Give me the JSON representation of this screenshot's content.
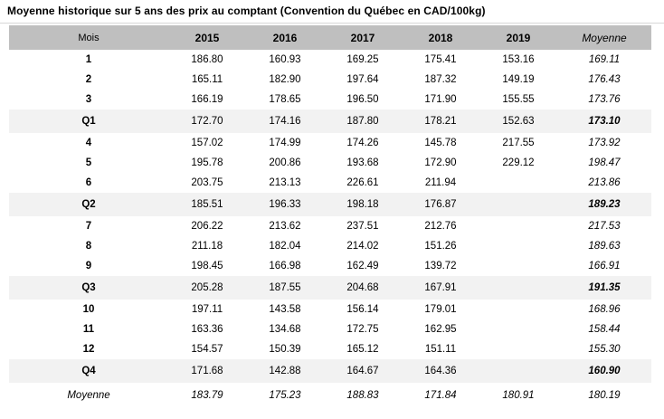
{
  "title": "Moyenne historique sur 5 ans des prix au comptant (Convention du Québec en CAD/100kg)",
  "colors": {
    "header_bg": "#bfbfbf",
    "quarter_row_bg": "#f2f2f2",
    "text": "#000000",
    "divider": "#d8d8d8"
  },
  "table": {
    "columns": [
      "Mois",
      "2015",
      "2016",
      "2017",
      "2018",
      "2019",
      "Moyenne"
    ],
    "rows": [
      {
        "label": "1",
        "type": "month",
        "values": [
          "186.80",
          "160.93",
          "169.25",
          "175.41",
          "153.16",
          "169.11"
        ]
      },
      {
        "label": "2",
        "type": "month",
        "values": [
          "165.11",
          "182.90",
          "197.64",
          "187.32",
          "149.19",
          "176.43"
        ]
      },
      {
        "label": "3",
        "type": "month",
        "values": [
          "166.19",
          "178.65",
          "196.50",
          "171.90",
          "155.55",
          "173.76"
        ]
      },
      {
        "label": "Q1",
        "type": "quarter",
        "values": [
          "172.70",
          "174.16",
          "187.80",
          "178.21",
          "152.63",
          "173.10"
        ]
      },
      {
        "label": "4",
        "type": "month",
        "values": [
          "157.02",
          "174.99",
          "174.26",
          "145.78",
          "217.55",
          "173.92"
        ]
      },
      {
        "label": "5",
        "type": "month",
        "values": [
          "195.78",
          "200.86",
          "193.68",
          "172.90",
          "229.12",
          "198.47"
        ]
      },
      {
        "label": "6",
        "type": "month",
        "values": [
          "203.75",
          "213.13",
          "226.61",
          "211.94",
          "",
          "213.86"
        ]
      },
      {
        "label": "Q2",
        "type": "quarter",
        "values": [
          "185.51",
          "196.33",
          "198.18",
          "176.87",
          "",
          "189.23"
        ]
      },
      {
        "label": "7",
        "type": "month",
        "values": [
          "206.22",
          "213.62",
          "237.51",
          "212.76",
          "",
          "217.53"
        ]
      },
      {
        "label": "8",
        "type": "month",
        "values": [
          "211.18",
          "182.04",
          "214.02",
          "151.26",
          "",
          "189.63"
        ]
      },
      {
        "label": "9",
        "type": "month",
        "values": [
          "198.45",
          "166.98",
          "162.49",
          "139.72",
          "",
          "166.91"
        ]
      },
      {
        "label": "Q3",
        "type": "quarter",
        "values": [
          "205.28",
          "187.55",
          "204.68",
          "167.91",
          "",
          "191.35"
        ]
      },
      {
        "label": "10",
        "type": "month",
        "values": [
          "197.11",
          "143.58",
          "156.14",
          "179.01",
          "",
          "168.96"
        ]
      },
      {
        "label": "11",
        "type": "month",
        "values": [
          "163.36",
          "134.68",
          "172.75",
          "162.95",
          "",
          "158.44"
        ]
      },
      {
        "label": "12",
        "type": "month",
        "values": [
          "154.57",
          "150.39",
          "165.12",
          "151.11",
          "",
          "155.30"
        ]
      },
      {
        "label": "Q4",
        "type": "quarter",
        "values": [
          "171.68",
          "142.88",
          "164.67",
          "164.36",
          "",
          "160.90"
        ]
      },
      {
        "label": "Moyenne",
        "type": "average",
        "values": [
          "183.79",
          "175.23",
          "188.83",
          "171.84",
          "180.91",
          "180.19"
        ]
      }
    ]
  }
}
